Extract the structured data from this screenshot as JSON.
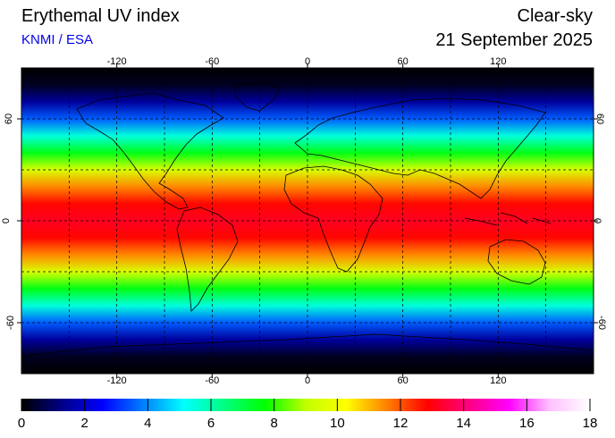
{
  "header": {
    "title": "Erythemal UV index",
    "credit": "KNMI / ESA",
    "mode": "Clear-sky",
    "date": "21 September 2025"
  },
  "map": {
    "projection": "equirectangular",
    "lon_range": [
      -180,
      180
    ],
    "lat_range": [
      -90,
      90
    ],
    "lon_ticks": [
      "-120",
      "-60",
      "0",
      "60",
      "120"
    ],
    "lat_ticks": [
      "60",
      "0",
      "-60"
    ],
    "gridlines": "dashed every 30 degrees",
    "uv_profile_by_latitude": [
      {
        "lat": 90,
        "uv": 0.0
      },
      {
        "lat": 80,
        "uv": 0.3
      },
      {
        "lat": 70,
        "uv": 1.5
      },
      {
        "lat": 60,
        "uv": 3.5
      },
      {
        "lat": 50,
        "uv": 5.5
      },
      {
        "lat": 40,
        "uv": 7.5
      },
      {
        "lat": 30,
        "uv": 9.5
      },
      {
        "lat": 20,
        "uv": 11.5
      },
      {
        "lat": 10,
        "uv": 12.8
      },
      {
        "lat": 0,
        "uv": 13.2
      },
      {
        "lat": -10,
        "uv": 12.8
      },
      {
        "lat": -20,
        "uv": 11.5
      },
      {
        "lat": -30,
        "uv": 9.5
      },
      {
        "lat": -40,
        "uv": 7.5
      },
      {
        "lat": -50,
        "uv": 5.5
      },
      {
        "lat": -60,
        "uv": 3.5
      },
      {
        "lat": -70,
        "uv": 1.5
      },
      {
        "lat": -80,
        "uv": 0.3
      },
      {
        "lat": -90,
        "uv": 0.0
      }
    ]
  },
  "colorbar": {
    "min": 0,
    "max": 18,
    "labels": [
      "0",
      "2",
      "4",
      "6",
      "8",
      "10",
      "12",
      "14",
      "16",
      "18"
    ],
    "colors": [
      "#000000",
      "#000088",
      "#0000ff",
      "#0080ff",
      "#00ffff",
      "#00ff80",
      "#00ff00",
      "#c0ff00",
      "#ffff00",
      "#ff8000",
      "#ff0000",
      "#ff0080",
      "#ff00ff",
      "#ffc0ff",
      "#ffffff"
    ]
  }
}
